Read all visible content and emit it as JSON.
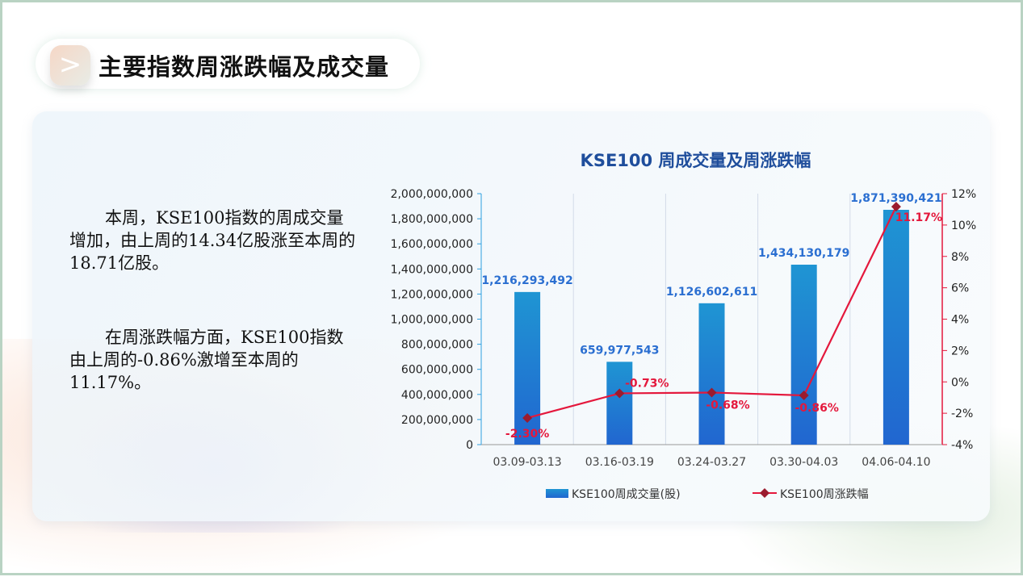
{
  "header": {
    "title": "主要指数周涨跌幅及成交量",
    "icon": "chevron-right-icon"
  },
  "text": {
    "p1": "本周，KSE100指数的周成交量增加，由上周的14.34亿股涨至本周的18.71亿股。",
    "p2": "在周涨跌幅方面，KSE100指数由上周的-0.86%激增至本周的11.17%。"
  },
  "colors": {
    "bar": "#1f8fd4",
    "line": "#e4183c",
    "marker": "#9b1b2e",
    "title": "#1f4e9c"
  },
  "chart_data": {
    "type": "bar+line",
    "title": "KSE100 周成交量及周涨跌幅",
    "categories": [
      "03.09-03.13",
      "03.16-03.19",
      "03.24-03.27",
      "03.30-04.03",
      "04.06-04.10"
    ],
    "series": [
      {
        "name": "KSE100周成交量(股)",
        "type": "bar",
        "axis": "left",
        "values": [
          1216293492,
          659977543,
          1126602611,
          1434130179,
          1871390421
        ],
        "labels": [
          "1,216,293,492",
          "659,977,543",
          "1,126,602,611",
          "1,434,130,179",
          "1,871,390,421"
        ]
      },
      {
        "name": "KSE100周涨跌幅",
        "type": "line",
        "axis": "right",
        "values": [
          -2.3,
          -0.73,
          -0.68,
          -0.86,
          11.17
        ],
        "labels": [
          "-2.30%",
          "-0.73%",
          "-0.68%",
          "-0.86%",
          "11.17%"
        ]
      }
    ],
    "y_left": {
      "range": [
        0,
        2000000000
      ],
      "ticks": [
        "0",
        "200,000,000",
        "400,000,000",
        "600,000,000",
        "800,000,000",
        "1,000,000,000",
        "1,200,000,000",
        "1,400,000,000",
        "1,600,000,000",
        "1,800,000,000",
        "2,000,000,000"
      ]
    },
    "y_right": {
      "range": [
        -4,
        12
      ],
      "ticks": [
        "-4%",
        "-2%",
        "0%",
        "2%",
        "4%",
        "6%",
        "8%",
        "10%",
        "12%"
      ]
    },
    "legend": "bottom",
    "grid": "vertical"
  }
}
